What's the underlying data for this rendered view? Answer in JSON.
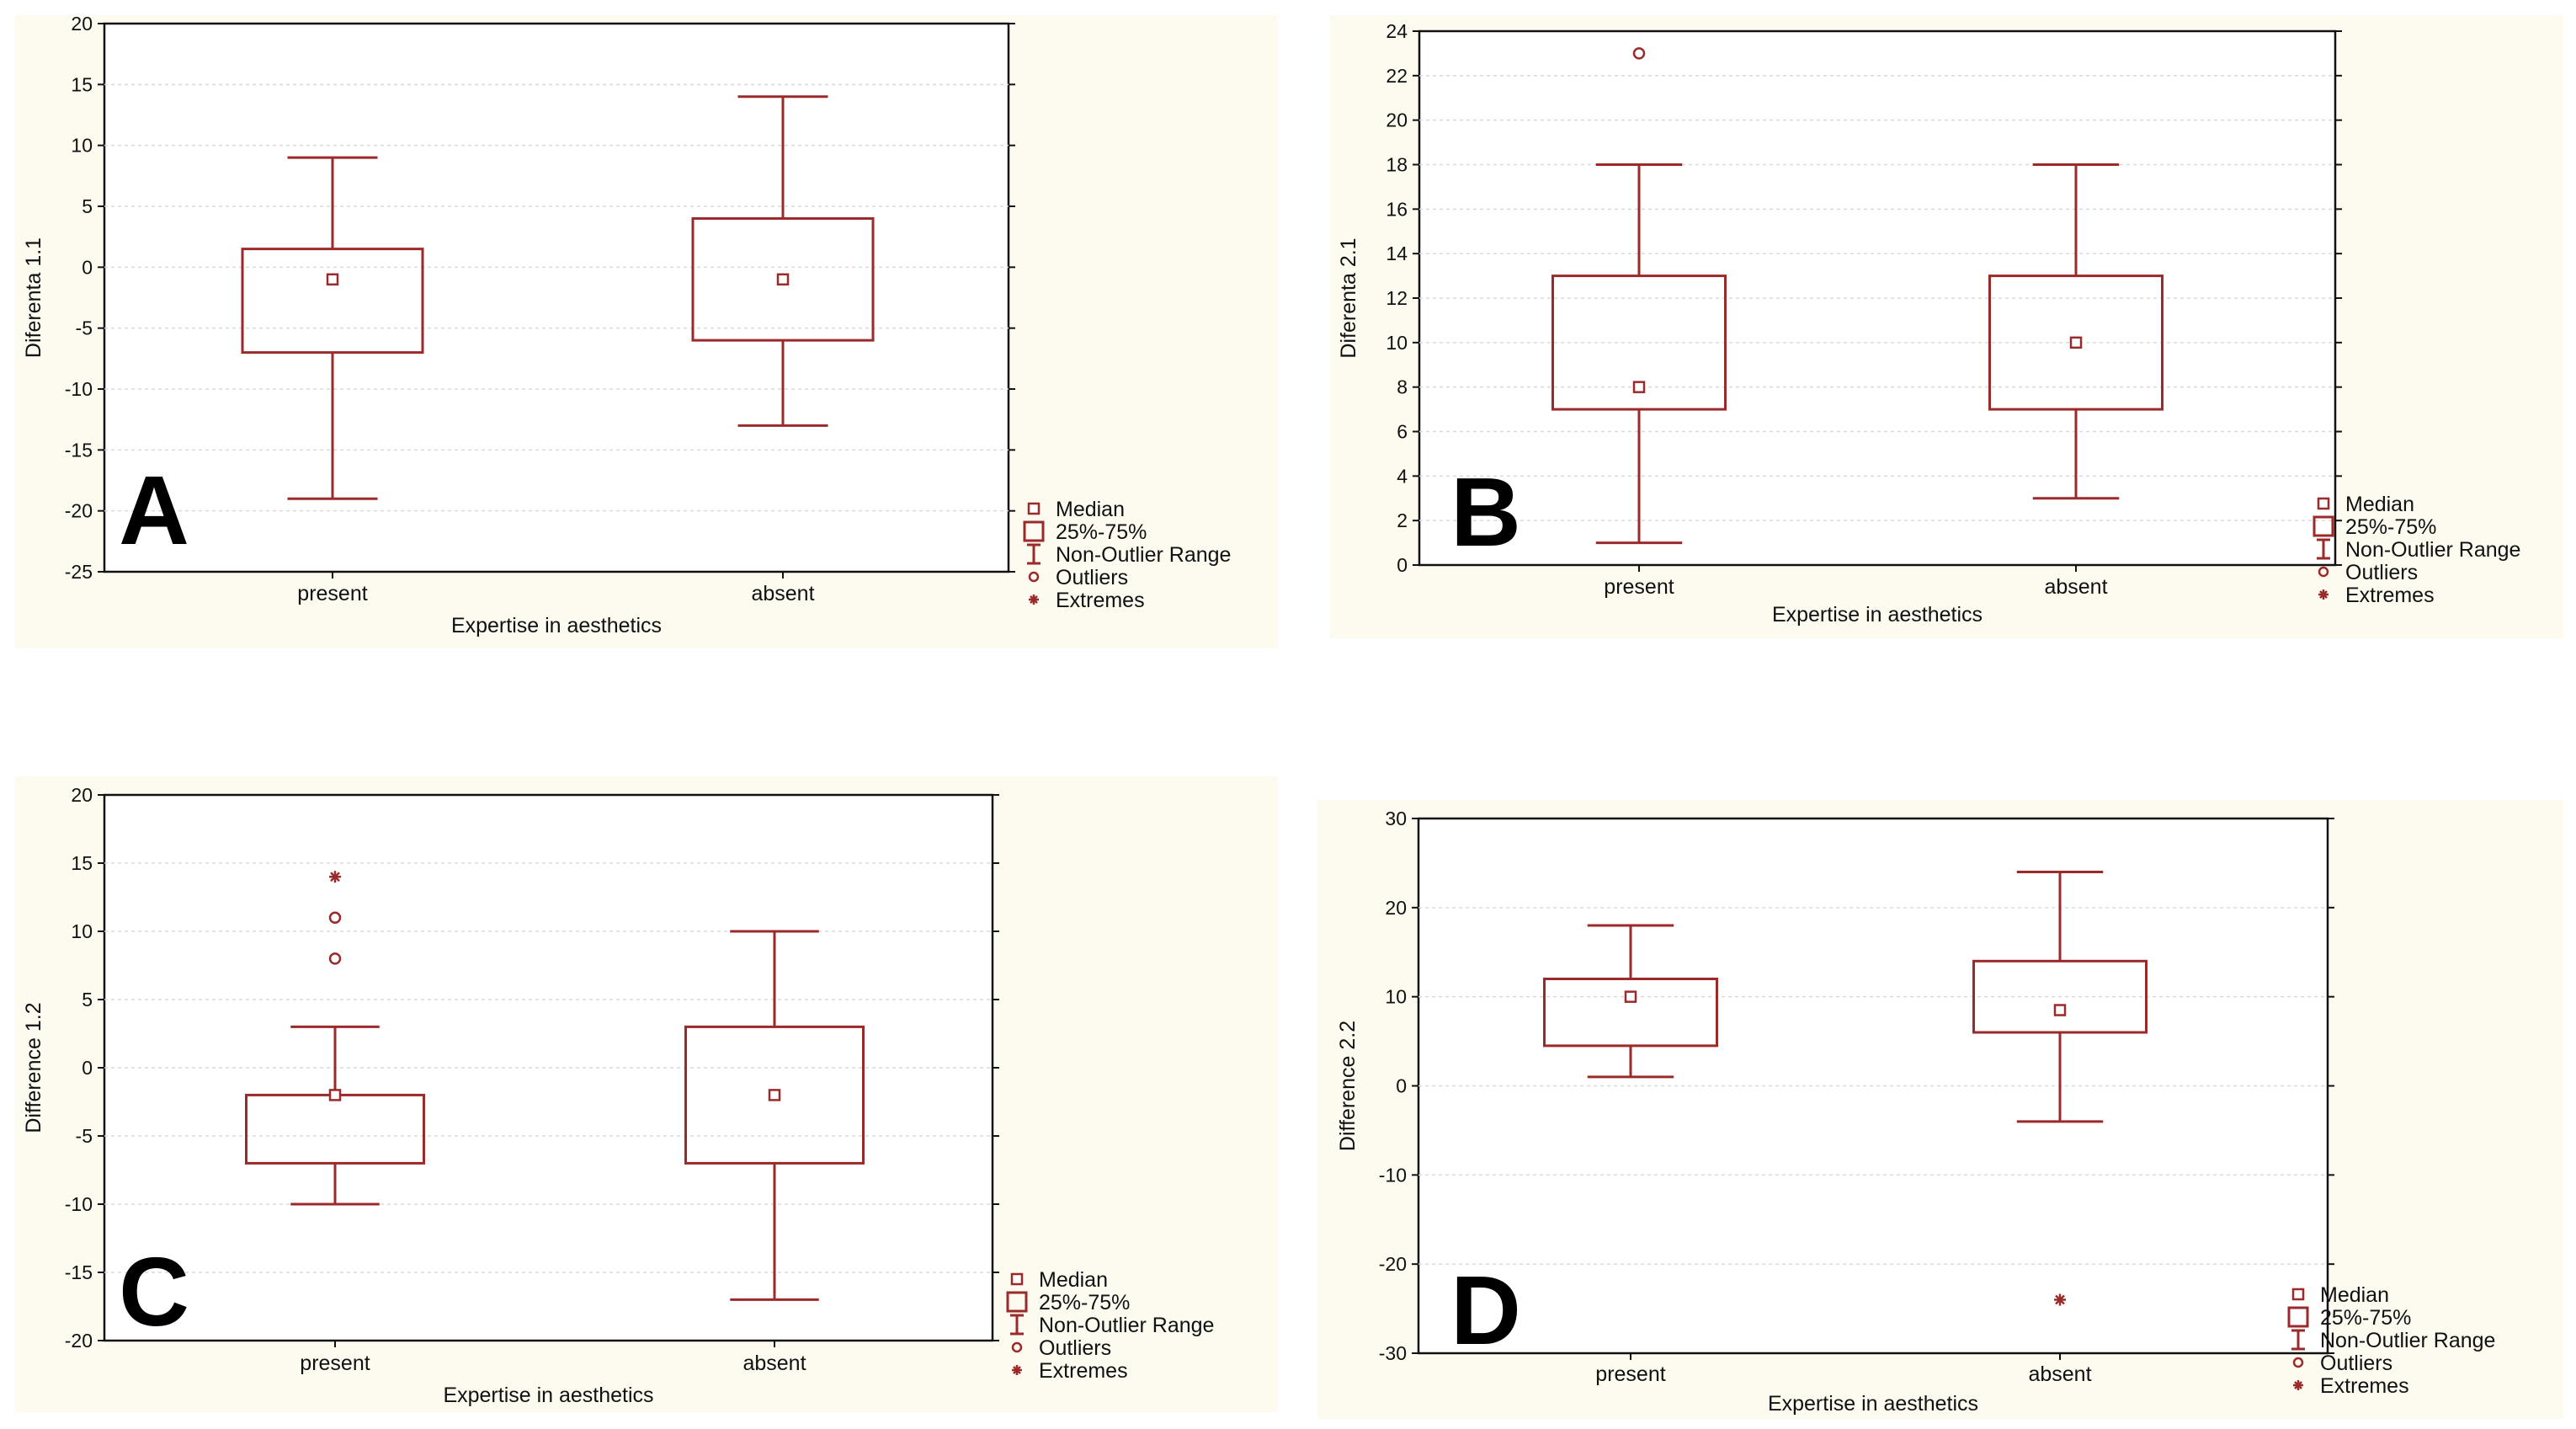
{
  "colors": {
    "accent": "#9b2a2a",
    "background": "#fdfaf0",
    "axis": "#111111"
  },
  "legend": {
    "items": [
      {
        "symbol": "median-square",
        "label": "Median"
      },
      {
        "symbol": "box-square",
        "label": "25%-75%"
      },
      {
        "symbol": "whisker",
        "label": "Non-Outlier Range"
      },
      {
        "symbol": "circle",
        "label": "Outliers"
      },
      {
        "symbol": "star",
        "label": "Extremes"
      }
    ]
  },
  "chart_data": [
    {
      "panel": "A",
      "type": "box",
      "title": "",
      "xlabel": "Expertise in aesthetics",
      "ylabel": "Diferenta 1.1",
      "ylim": [
        -25,
        20
      ],
      "yticks": [
        -25,
        -20,
        -15,
        -10,
        -5,
        0,
        5,
        10,
        15,
        20
      ],
      "categories": [
        "present",
        "absent"
      ],
      "boxes": [
        {
          "category": "present",
          "median": -1,
          "q1": -7,
          "q3": 1.5,
          "whisker_low": -19,
          "whisker_high": 9,
          "outliers": [],
          "extremes": []
        },
        {
          "category": "absent",
          "median": -1,
          "q1": -6,
          "q3": 4,
          "whisker_low": -13,
          "whisker_high": 14,
          "outliers": [],
          "extremes": []
        }
      ]
    },
    {
      "panel": "B",
      "type": "box",
      "title": "",
      "xlabel": "Expertise in aesthetics",
      "ylabel": "Diferenta 2.1",
      "ylim": [
        0,
        24
      ],
      "yticks": [
        0,
        2,
        4,
        6,
        8,
        10,
        12,
        14,
        16,
        18,
        20,
        22,
        24
      ],
      "categories": [
        "present",
        "absent"
      ],
      "boxes": [
        {
          "category": "present",
          "median": 8,
          "q1": 7,
          "q3": 13,
          "whisker_low": 1,
          "whisker_high": 18,
          "outliers": [
            23
          ],
          "extremes": []
        },
        {
          "category": "absent",
          "median": 10,
          "q1": 7,
          "q3": 13,
          "whisker_low": 3,
          "whisker_high": 18,
          "outliers": [],
          "extremes": []
        }
      ]
    },
    {
      "panel": "C",
      "type": "box",
      "title": "",
      "xlabel": "Expertise in aesthetics",
      "ylabel": "Difference 1.2",
      "ylim": [
        -20,
        20
      ],
      "yticks": [
        -20,
        -15,
        -10,
        -5,
        0,
        5,
        10,
        15,
        20
      ],
      "categories": [
        "present",
        "absent"
      ],
      "boxes": [
        {
          "category": "present",
          "median": -2,
          "q1": -7,
          "q3": -2,
          "whisker_low": -10,
          "whisker_high": 3,
          "outliers": [
            8,
            11
          ],
          "extremes": [
            14
          ]
        },
        {
          "category": "absent",
          "median": -2,
          "q1": -7,
          "q3": 3,
          "whisker_low": -17,
          "whisker_high": 10,
          "outliers": [],
          "extremes": []
        }
      ]
    },
    {
      "panel": "D",
      "type": "box",
      "title": "",
      "xlabel": "Expertise in aesthetics",
      "ylabel": "Difference 2.2",
      "ylim": [
        -30,
        30
      ],
      "yticks": [
        -30,
        -20,
        -10,
        0,
        10,
        20,
        30
      ],
      "categories": [
        "present",
        "absent"
      ],
      "boxes": [
        {
          "category": "present",
          "median": 10,
          "q1": 4.5,
          "q3": 12,
          "whisker_low": 1,
          "whisker_high": 18,
          "outliers": [],
          "extremes": []
        },
        {
          "category": "absent",
          "median": 8.5,
          "q1": 6,
          "q3": 14,
          "whisker_low": -4,
          "whisker_high": 24,
          "outliers": [],
          "extremes": [
            -24
          ]
        }
      ]
    }
  ]
}
